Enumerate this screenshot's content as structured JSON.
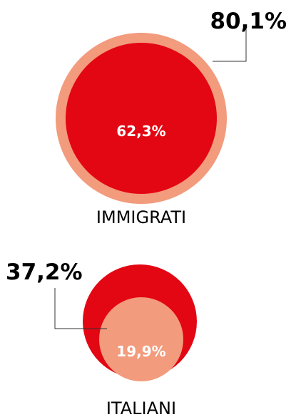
{
  "chart_data": {
    "type": "nested-circle",
    "unit": "%",
    "groups": [
      {
        "name": "IMMIGRATI",
        "outer": {
          "value": 80.1,
          "label": "80,1%"
        },
        "inner": {
          "value": 62.3,
          "label": "62,3%"
        }
      },
      {
        "name": "ITALIANI",
        "outer": {
          "value": 37.2,
          "label": "37,2%"
        },
        "inner": {
          "value": 19.9,
          "label": "19,9%"
        }
      }
    ]
  },
  "colors": {
    "red": "#e30613",
    "salmon": "#f29b7d",
    "text": "#000000",
    "inner_text": "#ffffff",
    "leader": "#333333"
  }
}
